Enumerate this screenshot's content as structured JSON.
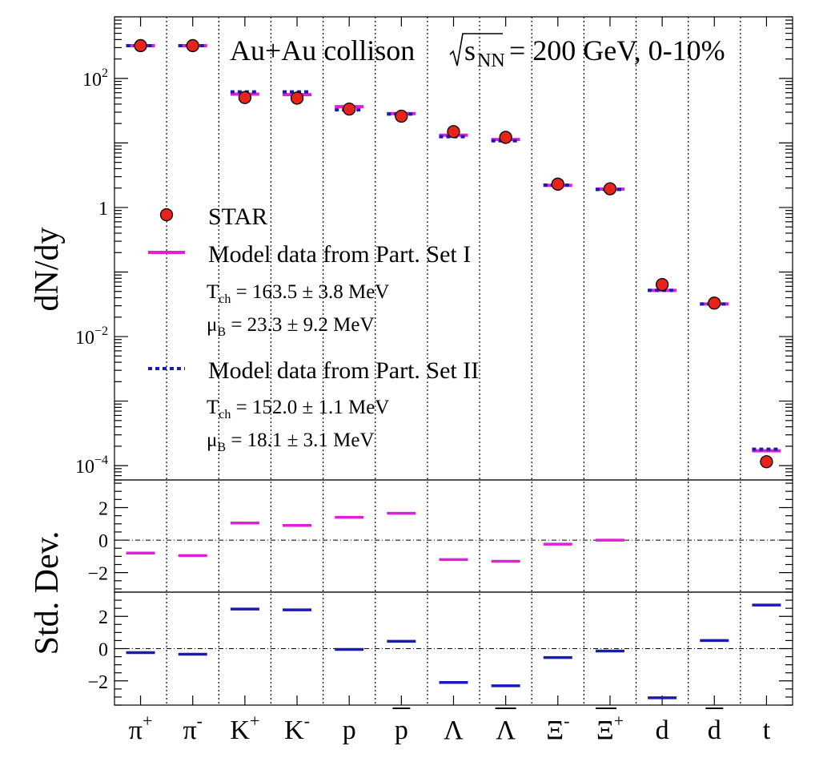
{
  "chart_data": {
    "type": "scatter",
    "title": "Au+Au collison",
    "title_energy_parts": {
      "sqrt_s": "s",
      "sub": "NN",
      "rest": " = 200 GeV, 0-10%"
    },
    "particles": [
      {
        "base": "π",
        "sup": "+",
        "bar": false
      },
      {
        "base": "π",
        "sup": "-",
        "bar": false
      },
      {
        "base": "K",
        "sup": "+",
        "bar": false
      },
      {
        "base": "K",
        "sup": "-",
        "bar": false
      },
      {
        "base": "p",
        "sup": "",
        "bar": false
      },
      {
        "base": "p",
        "sup": "",
        "bar": true
      },
      {
        "base": "Λ",
        "sup": "",
        "bar": false
      },
      {
        "base": "Λ",
        "sup": "",
        "bar": true
      },
      {
        "base": "Ξ",
        "sup": "-",
        "bar": false
      },
      {
        "base": "Ξ",
        "sup": "+",
        "bar": true
      },
      {
        "base": "d",
        "sup": "",
        "bar": false
      },
      {
        "base": "d",
        "sup": "",
        "bar": true
      },
      {
        "base": "t",
        "sup": "",
        "bar": false
      }
    ],
    "top_panel": {
      "ylabel": "dN/dy",
      "yscale": "log",
      "ylim": [
        6e-05,
        900
      ],
      "ticks": [
        {
          "exp": 2
        },
        {
          "exp": 0,
          "text": "1"
        },
        {
          "exp": -2
        },
        {
          "exp": -4
        }
      ],
      "series": [
        {
          "name": "STAR",
          "marker": "circle",
          "values": [
            322,
            322,
            50.5,
            49.5,
            33.5,
            26.0,
            15.0,
            12.2,
            2.3,
            1.95,
            0.064,
            0.033,
            0.000115
          ]
        },
        {
          "name": "Model data from Part. Set I",
          "marker": "solid-line",
          "values": [
            322,
            322,
            57,
            56,
            36.5,
            28.5,
            13.2,
            11.3,
            2.2,
            1.93,
            0.052,
            0.032,
            0.00017
          ]
        },
        {
          "name": "Model data from Part. Set II",
          "marker": "dotted-line",
          "values": [
            322,
            322,
            62,
            62,
            32.5,
            28.0,
            12.5,
            10.8,
            2.22,
            1.9,
            0.052,
            0.032,
            0.00018
          ]
        }
      ]
    },
    "dev_panel_1": {
      "ylabel": "Std. Dev.",
      "ylim": [
        -3.2,
        3.7
      ],
      "ticks": [
        2,
        0,
        -2
      ],
      "series": "Model data from Part. Set I",
      "values": [
        -0.8,
        -0.95,
        1.05,
        0.9,
        1.4,
        1.65,
        -1.2,
        -1.3,
        -0.25,
        0.0,
        null,
        null,
        null
      ]
    },
    "dev_panel_2": {
      "ylim": [
        -3.5,
        3.5
      ],
      "ticks": [
        2,
        0,
        -2
      ],
      "series": "Model data from Part. Set II",
      "values": [
        -0.25,
        -0.35,
        2.45,
        2.4,
        -0.05,
        0.45,
        -2.1,
        -2.3,
        -0.55,
        -0.15,
        -3.05,
        0.5,
        2.7
      ]
    },
    "legend": {
      "placement": "middle-left",
      "entries": [
        {
          "text": "STAR",
          "symbol": "circle"
        },
        {
          "text": "Model data from Part. Set I",
          "symbol": "solid-line"
        },
        {
          "text": "Model data from Part. Set II",
          "symbol": "dotted-line"
        }
      ],
      "set1_params": {
        "tch": {
          "base": "T",
          "sub": "ch",
          "value": " = 163.5 ± 3.8 MeV"
        },
        "mub": {
          "base": "μ",
          "sub": "B",
          "value": " = 23.3 ± 9.2 MeV"
        }
      },
      "set2_params": {
        "tch": {
          "base": "T",
          "sub": "ch",
          "value": " = 152.0 ± 1.1 MeV"
        },
        "mub": {
          "base": "μ",
          "sub": "B",
          "value": " = 18.1 ± 3.1 MeV"
        }
      }
    },
    "colors": {
      "star_fill": "#e8231c",
      "set1": "#e020d8",
      "set2": "#1a1ab8"
    }
  }
}
